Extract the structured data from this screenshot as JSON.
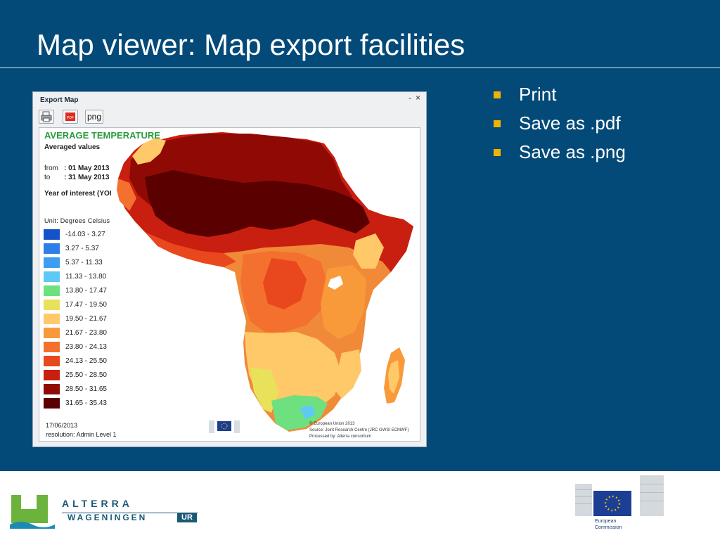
{
  "slide": {
    "title": "Map viewer: Map export facilities",
    "bullets": [
      "Print",
      "Save as .pdf",
      "Save as .png"
    ],
    "bullet_color": "#f0b400",
    "background_color": "#034a78"
  },
  "window": {
    "title": "Export Map",
    "minimize": "-",
    "close": "×",
    "toolbar": {
      "print_icon": "printer-icon",
      "pdf_icon": "pdf-icon",
      "pdf_label": "PDF",
      "png_label": "png"
    }
  },
  "map": {
    "title": "AVERAGE TEMPERATURE",
    "subtitle": "Averaged values",
    "from_label": "from",
    "from_value": ": 01 May 2013",
    "to_label": "to",
    "to_value": ": 31 May 2013",
    "year_of_interest": "Year of interest (YOI",
    "unit": "Unit: Degrees Celsius",
    "legend": [
      {
        "label": "-14.03 - 3.27",
        "color": "#1552c8"
      },
      {
        "label": "3.27 - 5.37",
        "color": "#2f7ee8"
      },
      {
        "label": "5.37 - 11.33",
        "color": "#3d9df2"
      },
      {
        "label": "11.33 - 13.80",
        "color": "#5fc9f5"
      },
      {
        "label": "13.80 - 17.47",
        "color": "#6fe07f"
      },
      {
        "label": "17.47 - 19.50",
        "color": "#e8e25a"
      },
      {
        "label": "19.50 - 21.67",
        "color": "#ffc96a"
      },
      {
        "label": "21.67 - 23.80",
        "color": "#f89a3a"
      },
      {
        "label": "23.80 - 24.13",
        "color": "#f4702e"
      },
      {
        "label": "24.13 - 25.50",
        "color": "#e9471d"
      },
      {
        "label": "25.50 - 28.50",
        "color": "#c91f10"
      },
      {
        "label": "28.50 - 31.65",
        "color": "#8f0a05"
      },
      {
        "label": "31.65 - 35.43",
        "color": "#5a0000"
      }
    ],
    "date": "17/06/2013",
    "resolution": "resolution: Admin Level 1",
    "credits": [
      "© European Union 2013",
      "Source: Joint Research Centre (JRC GWSI ECMWF)",
      "Processed by: Alterra consortium"
    ]
  },
  "footer": {
    "alterra_line1": "ALTERRA",
    "alterra_line2": "WAGENINGEN",
    "alterra_ur": "UR",
    "ec_line1": "European",
    "ec_line2": "Commission"
  }
}
